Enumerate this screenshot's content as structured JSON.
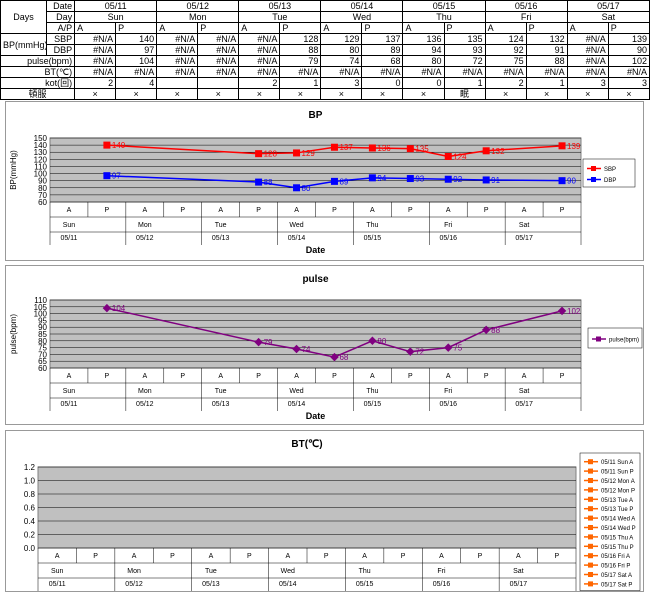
{
  "table": {
    "col_days": "Days",
    "row_labels": [
      "Date",
      "Day",
      "A/P",
      "SBP",
      "DBP",
      "pulse(bpm)",
      "BT(℃)",
      "kot(回)",
      "頓服"
    ],
    "bp_unit_label": "BP(mmHg)",
    "dates": [
      "05/11",
      "05/12",
      "05/13",
      "05/14",
      "05/15",
      "05/16",
      "05/17"
    ],
    "days": [
      "Sun",
      "Mon",
      "Tue",
      "Wed",
      "Thu",
      "Fri",
      "Sat"
    ],
    "ap": [
      "A",
      "P"
    ],
    "sbp": [
      "#N/A",
      "140",
      "#N/A",
      "#N/A",
      "#N/A",
      "128",
      "129",
      "137",
      "136",
      "135",
      "124",
      "132",
      "#N/A",
      "139"
    ],
    "dbp": [
      "#N/A",
      "97",
      "#N/A",
      "#N/A",
      "#N/A",
      "88",
      "80",
      "89",
      "94",
      "93",
      "92",
      "91",
      "#N/A",
      "90"
    ],
    "pulse": [
      "#N/A",
      "104",
      "#N/A",
      "#N/A",
      "#N/A",
      "79",
      "74",
      "68",
      "80",
      "72",
      "75",
      "88",
      "#N/A",
      "102"
    ],
    "bt": [
      "#N/A",
      "#N/A",
      "#N/A",
      "#N/A",
      "#N/A",
      "#N/A",
      "#N/A",
      "#N/A",
      "#N/A",
      "#N/A",
      "#N/A",
      "#N/A",
      "#N/A",
      "#N/A"
    ],
    "kot": [
      "2",
      "4",
      "",
      "",
      "2",
      "1",
      "3",
      "0",
      "0",
      "1",
      "2",
      "1",
      "3",
      "3"
    ],
    "tonpuku": [
      "×",
      "×",
      "×",
      "×",
      "×",
      "×",
      "×",
      "×",
      "×",
      "眠",
      "×",
      "×",
      "×",
      "×"
    ]
  },
  "chart_data": [
    {
      "type": "line",
      "title": "BP",
      "ylabel": "BP(mmHg)",
      "xlabel": "Date",
      "ylim": [
        60,
        150
      ],
      "yticks": [
        60,
        70,
        80,
        90,
        100,
        110,
        120,
        130,
        140,
        150
      ],
      "x_ap": [
        "A",
        "P",
        "A",
        "P",
        "A",
        "P",
        "A",
        "P",
        "A",
        "P",
        "A",
        "P",
        "A",
        "P"
      ],
      "x_days": [
        "Sun",
        "Mon",
        "Tue",
        "Wed",
        "Thu",
        "Fri",
        "Sat"
      ],
      "x_dates": [
        "05/11",
        "05/12",
        "05/13",
        "05/14",
        "05/15",
        "05/16",
        "05/17"
      ],
      "series": [
        {
          "name": "SBP",
          "color": "#ff0000",
          "values": [
            null,
            140,
            null,
            null,
            null,
            128,
            129,
            137,
            136,
            135,
            124,
            132,
            null,
            139
          ]
        },
        {
          "name": "DBP",
          "color": "#0000ff",
          "values": [
            null,
            97,
            null,
            null,
            null,
            88,
            80,
            89,
            94,
            93,
            92,
            91,
            null,
            90
          ]
        }
      ],
      "legend": "right",
      "grid": true
    },
    {
      "type": "line",
      "title": "pulse",
      "ylabel": "pulse(bpm)",
      "xlabel": "Date",
      "ylim": [
        60,
        110
      ],
      "yticks": [
        60,
        65,
        70,
        75,
        80,
        85,
        90,
        95,
        100,
        105,
        110
      ],
      "x_ap": [
        "A",
        "P",
        "A",
        "P",
        "A",
        "P",
        "A",
        "P",
        "A",
        "P",
        "A",
        "P",
        "A",
        "P"
      ],
      "x_days": [
        "Sun",
        "Mon",
        "Tue",
        "Wed",
        "Thu",
        "Fri",
        "Sat"
      ],
      "x_dates": [
        "05/11",
        "05/12",
        "05/13",
        "05/14",
        "05/15",
        "05/16",
        "05/17"
      ],
      "series": [
        {
          "name": "pulse(bpm)",
          "color": "#800080",
          "values": [
            null,
            104,
            null,
            null,
            null,
            79,
            74,
            68,
            80,
            72,
            75,
            88,
            null,
            102
          ]
        }
      ],
      "legend": "right",
      "grid": true
    },
    {
      "type": "line",
      "title": "BT(℃)",
      "ylim": [
        0,
        1.2
      ],
      "yticks": [
        "0.0",
        "0.2",
        "0.4",
        "0.6",
        "0.8",
        "1.0",
        "1.2"
      ],
      "x_ap": [
        "A",
        "P",
        "A",
        "P",
        "A",
        "P",
        "A",
        "P",
        "A",
        "P",
        "A",
        "P",
        "A",
        "P"
      ],
      "x_days": [
        "Sun",
        "Mon",
        "Tue",
        "Wed",
        "Thu",
        "Fri",
        "Sat"
      ],
      "x_dates": [
        "05/11",
        "05/12",
        "05/13",
        "05/14",
        "05/15",
        "05/16",
        "05/17"
      ],
      "legend_color": "#ff6600",
      "series": [
        {
          "name": "05/11 Sun A"
        },
        {
          "name": "05/11 Sun P"
        },
        {
          "name": "05/12 Mon A"
        },
        {
          "name": "05/12 Mon P"
        },
        {
          "name": "05/13 Tue A"
        },
        {
          "name": "05/13 Tue P"
        },
        {
          "name": "05/14 Wed A"
        },
        {
          "name": "05/14 Wed P"
        },
        {
          "name": "05/15 Thu A"
        },
        {
          "name": "05/15 Thu P"
        },
        {
          "name": "05/16 Fri A"
        },
        {
          "name": "05/16 Fri P"
        },
        {
          "name": "05/17 Sat A"
        },
        {
          "name": "05/17 Sat P"
        }
      ],
      "legend": "right",
      "grid": true
    }
  ]
}
